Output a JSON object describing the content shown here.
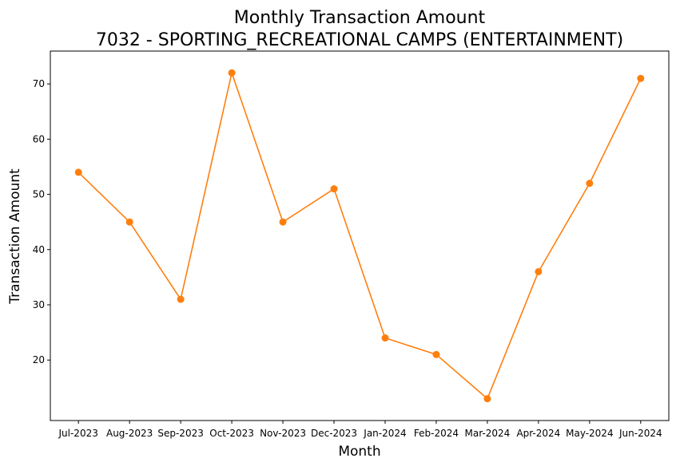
{
  "chart_data": {
    "type": "line",
    "title_line1": "Monthly Transaction Amount",
    "title_line2": "7032 - SPORTING_RECREATIONAL CAMPS (ENTERTAINMENT)",
    "xlabel": "Month",
    "ylabel": "Transaction Amount",
    "categories": [
      "Jul-2023",
      "Aug-2023",
      "Sep-2023",
      "Oct-2023",
      "Nov-2023",
      "Dec-2023",
      "Jan-2024",
      "Feb-2024",
      "Mar-2024",
      "Apr-2024",
      "May-2024",
      "Jun-2024"
    ],
    "series": [
      {
        "values": [
          54,
          45,
          31,
          72,
          45,
          51,
          24,
          21,
          13,
          36,
          52,
          71
        ],
        "color": "#ff7f0e",
        "marker": "circle"
      }
    ],
    "yticks": [
      20,
      30,
      40,
      50,
      60,
      70
    ],
    "ylim": [
      9.05,
      75.95
    ],
    "grid": false,
    "legend": "none"
  }
}
